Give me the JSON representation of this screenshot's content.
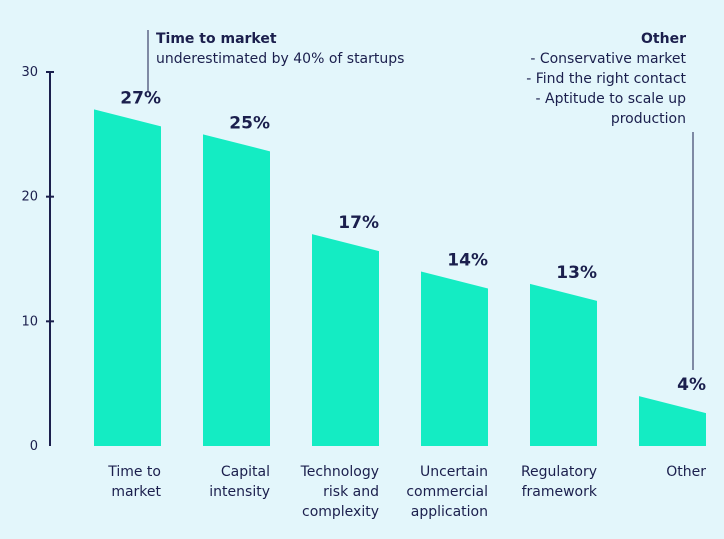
{
  "chart_data": {
    "type": "bar",
    "categories": [
      [
        "Time to",
        "market"
      ],
      [
        "Capital",
        "intensity"
      ],
      [
        "Technology",
        "risk and",
        "complexity"
      ],
      [
        "Uncertain",
        "commercial",
        "application"
      ],
      [
        "Regulatory",
        "framework"
      ],
      [
        "Other"
      ]
    ],
    "values": [
      27,
      25,
      17,
      14,
      13,
      4
    ],
    "value_labels": [
      "27%",
      "25%",
      "17%",
      "14%",
      "13%",
      "4%"
    ],
    "yticks": [
      0,
      10,
      20,
      30
    ],
    "ylim": [
      0,
      30
    ],
    "bar_color": "#14ecc3",
    "text_color": "#1b1f4d",
    "annotations": {
      "left": {
        "title": "Time to market",
        "text": "underestimated by 40% of startups"
      },
      "right": {
        "title": "Other",
        "lines": [
          "- Conservative market",
          "- Find the right contact",
          "- Aptitude to scale up",
          "production"
        ]
      }
    }
  }
}
